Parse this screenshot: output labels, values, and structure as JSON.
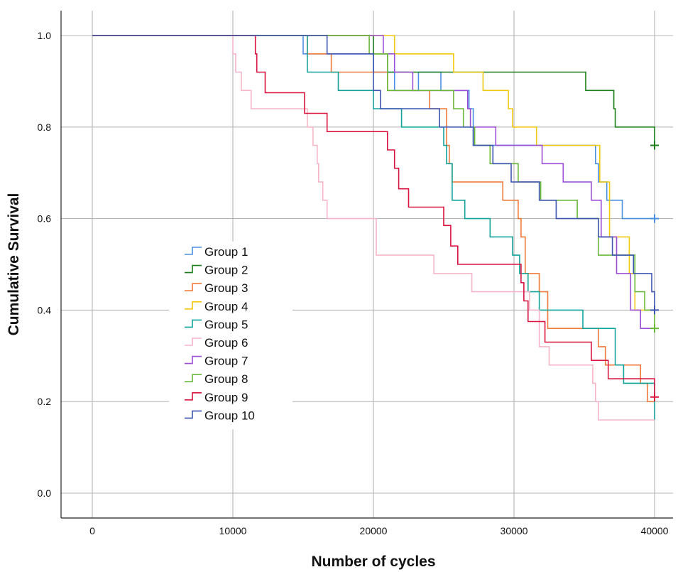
{
  "chart_data": {
    "type": "line",
    "subtype": "kaplan-meier-step",
    "title": "",
    "xlabel": "Number of cycles",
    "ylabel": "Cumulative Survival",
    "xlim": [
      -2000,
      40500
    ],
    "ylim": [
      -0.07,
      1.06
    ],
    "xticks": [
      0,
      10000,
      20000,
      30000,
      40000
    ],
    "xtick_labels": [
      "0",
      "10000",
      "20000",
      "30000",
      "40000"
    ],
    "yticks": [
      0.0,
      0.2,
      0.4,
      0.6,
      0.8,
      1.0
    ],
    "ytick_labels": [
      "0.0",
      "0.2",
      "0.4",
      "0.6",
      "0.8",
      "1.0"
    ],
    "grid": true,
    "legend_position": "center-left",
    "censor_marker": "+",
    "series": [
      {
        "name": "Group 1",
        "color": "#4a90e2",
        "censored_at_end": true,
        "x": [
          0,
          15000,
          20000,
          21500,
          23200,
          24800,
          26000,
          26800,
          27100,
          31800,
          35800,
          36000,
          36600,
          37700,
          40000
        ],
        "y": [
          1.0,
          0.96,
          0.92,
          0.88,
          0.92,
          0.88,
          0.88,
          0.84,
          0.76,
          0.76,
          0.72,
          0.68,
          0.64,
          0.6,
          0.6
        ]
      },
      {
        "name": "Group 2",
        "color": "#1a7f1a",
        "censored_at_end": true,
        "x": [
          0,
          20000,
          21000,
          22000,
          35100,
          37100,
          37200,
          40000
        ],
        "y": [
          1.0,
          0.96,
          0.92,
          0.92,
          0.88,
          0.84,
          0.8,
          0.76
        ]
      },
      {
        "name": "Group 3",
        "color": "#f07a3a",
        "censored_at_end": false,
        "x": [
          0,
          15300,
          16200,
          17000,
          21000,
          24000,
          25200,
          25400,
          25600,
          26500,
          29200,
          30300,
          30500,
          30800,
          31800,
          32400,
          35500,
          36000,
          36500,
          37500,
          39000,
          39500,
          40000
        ],
        "y": [
          1.0,
          0.96,
          0.96,
          0.92,
          0.88,
          0.84,
          0.76,
          0.72,
          0.68,
          0.68,
          0.64,
          0.6,
          0.56,
          0.48,
          0.44,
          0.36,
          0.36,
          0.32,
          0.28,
          0.28,
          0.24,
          0.2,
          0.2
        ]
      },
      {
        "name": "Group 4",
        "color": "#f2c811",
        "censored_at_end": false,
        "x": [
          0,
          21500,
          22500,
          25700,
          27800,
          29600,
          29900,
          31600,
          36100,
          36800,
          38200,
          38600,
          40000
        ],
        "y": [
          1.0,
          0.96,
          0.96,
          0.92,
          0.88,
          0.84,
          0.8,
          0.76,
          0.68,
          0.56,
          0.48,
          0.4,
          0.4
        ]
      },
      {
        "name": "Group 5",
        "color": "#14a39a",
        "censored_at_end": false,
        "x": [
          0,
          15300,
          16200,
          17500,
          20000,
          22000,
          25000,
          25200,
          25600,
          26500,
          28300,
          29900,
          30400,
          31000,
          31800,
          32400,
          34900,
          37200,
          37800,
          39000,
          40000
        ],
        "y": [
          1.0,
          0.92,
          0.92,
          0.88,
          0.84,
          0.8,
          0.76,
          0.72,
          0.64,
          0.6,
          0.56,
          0.52,
          0.48,
          0.44,
          0.4,
          0.4,
          0.36,
          0.28,
          0.24,
          0.24,
          0.16
        ]
      },
      {
        "name": "Group 6",
        "color": "#f7b6c8",
        "censored_at_end": false,
        "x": [
          0,
          10000,
          10200,
          10600,
          11300,
          15300,
          15700,
          16000,
          16100,
          16400,
          16700,
          20000,
          20200,
          24300,
          27000,
          31100,
          31800,
          32500,
          35000,
          35600,
          35800,
          36000,
          40000
        ],
        "y": [
          1.0,
          0.96,
          0.92,
          0.88,
          0.84,
          0.8,
          0.76,
          0.72,
          0.68,
          0.64,
          0.6,
          0.6,
          0.52,
          0.48,
          0.44,
          0.4,
          0.32,
          0.28,
          0.28,
          0.24,
          0.2,
          0.16,
          0.16
        ]
      },
      {
        "name": "Group 7",
        "color": "#9b4fd6",
        "censored_at_end": false,
        "x": [
          0,
          16700,
          20700,
          21500,
          22800,
          25500,
          26700,
          26900,
          28700,
          32000,
          33500,
          35500,
          36200,
          37300,
          38300,
          39000,
          40000
        ],
        "y": [
          1.0,
          1.0,
          0.96,
          0.92,
          0.88,
          0.88,
          0.84,
          0.8,
          0.76,
          0.72,
          0.68,
          0.64,
          0.56,
          0.48,
          0.4,
          0.36,
          0.36
        ]
      },
      {
        "name": "Group 8",
        "color": "#6ab83a",
        "censored_at_end": true,
        "x": [
          0,
          16600,
          19700,
          21000,
          25700,
          26400,
          27200,
          28300,
          30300,
          31900,
          34500,
          36000,
          38600,
          39300,
          40000
        ],
        "y": [
          1.0,
          1.0,
          0.96,
          0.88,
          0.84,
          0.8,
          0.76,
          0.72,
          0.68,
          0.64,
          0.6,
          0.52,
          0.44,
          0.4,
          0.36
        ]
      },
      {
        "name": "Group 9",
        "color": "#d9143f",
        "censored_at_end": true,
        "x": [
          0,
          11600,
          11700,
          12300,
          15100,
          16700,
          21000,
          21500,
          21800,
          22500,
          23000,
          25000,
          25500,
          26000,
          26500,
          30500,
          30700,
          31000,
          32200,
          35500,
          36700,
          40000
        ],
        "y": [
          1.0,
          0.96,
          0.92,
          0.875,
          0.83,
          0.79,
          0.75,
          0.71,
          0.665,
          0.625,
          0.625,
          0.585,
          0.54,
          0.5,
          0.5,
          0.46,
          0.42,
          0.375,
          0.33,
          0.29,
          0.25,
          0.21
        ]
      },
      {
        "name": "Group 10",
        "color": "#3f56b0",
        "censored_at_end": true,
        "x": [
          0,
          16700,
          17000,
          20000,
          20500,
          22000,
          24700,
          27100,
          28500,
          29800,
          31800,
          33000,
          36000,
          37000,
          38500,
          39800,
          40000
        ],
        "y": [
          1.0,
          0.96,
          0.96,
          0.88,
          0.84,
          0.84,
          0.8,
          0.76,
          0.72,
          0.68,
          0.64,
          0.6,
          0.56,
          0.52,
          0.48,
          0.44,
          0.4
        ]
      }
    ]
  }
}
